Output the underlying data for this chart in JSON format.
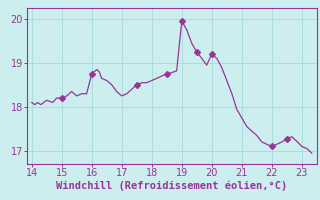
{
  "x": [
    14.0,
    14.1,
    14.2,
    14.3,
    14.5,
    14.7,
    14.83,
    15.0,
    15.17,
    15.33,
    15.5,
    15.67,
    15.83,
    16.0,
    16.17,
    16.25,
    16.33,
    16.5,
    16.67,
    16.83,
    17.0,
    17.17,
    17.33,
    17.5,
    17.67,
    17.83,
    18.0,
    18.17,
    18.33,
    18.5,
    18.67,
    18.83,
    19.0,
    19.17,
    19.33,
    19.5,
    19.67,
    19.83,
    20.0,
    20.17,
    20.33,
    20.5,
    20.67,
    20.83,
    21.0,
    21.17,
    21.33,
    21.5,
    21.67,
    21.83,
    22.0,
    22.17,
    22.33,
    22.5,
    22.67,
    22.83,
    23.0,
    23.17,
    23.33
  ],
  "y": [
    18.1,
    18.05,
    18.1,
    18.05,
    18.15,
    18.1,
    18.2,
    18.2,
    18.25,
    18.35,
    18.25,
    18.3,
    18.3,
    18.75,
    18.85,
    18.8,
    18.65,
    18.6,
    18.5,
    18.35,
    18.25,
    18.3,
    18.4,
    18.5,
    18.55,
    18.55,
    18.6,
    18.65,
    18.7,
    18.75,
    18.78,
    18.82,
    19.95,
    19.75,
    19.45,
    19.25,
    19.1,
    18.95,
    19.2,
    19.1,
    18.9,
    18.6,
    18.3,
    17.95,
    17.75,
    17.55,
    17.45,
    17.35,
    17.2,
    17.15,
    17.1,
    17.15,
    17.2,
    17.28,
    17.32,
    17.22,
    17.1,
    17.05,
    16.95
  ],
  "marker_x": [
    15.0,
    16.0,
    17.5,
    18.5,
    19.0,
    19.5,
    20.0,
    22.0,
    22.5
  ],
  "marker_y": [
    18.2,
    18.75,
    18.5,
    18.75,
    19.95,
    19.25,
    19.2,
    17.1,
    17.28
  ],
  "line_color": "#993399",
  "marker_color": "#993399",
  "bg_color": "#cceeee",
  "grid_color": "#aadddd",
  "axis_color": "#993399",
  "xlabel": "Windchill (Refroidissement éolien,°C)",
  "xlim": [
    13.85,
    23.5
  ],
  "ylim": [
    16.7,
    20.25
  ],
  "xticks": [
    14,
    15,
    16,
    17,
    18,
    19,
    20,
    21,
    22,
    23
  ],
  "yticks": [
    17,
    18,
    19,
    20
  ],
  "xlabel_fontsize": 7.5,
  "tick_fontsize": 7.0
}
